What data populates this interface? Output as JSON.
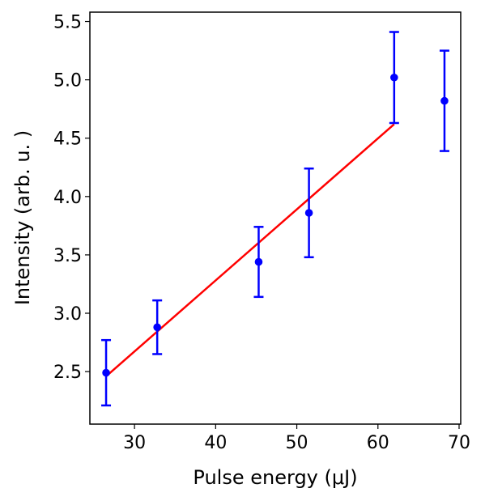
{
  "chart_data": {
    "type": "scatter",
    "title": "",
    "xlabel": "Pulse energy (μJ)",
    "ylabel": "Intensity (arb.  u. )",
    "xlim": [
      24.5,
      70.2
    ],
    "ylim": [
      2.05,
      5.58
    ],
    "xticks": [
      30,
      40,
      50,
      60,
      70
    ],
    "yticks": [
      2.5,
      3.0,
      3.5,
      4.0,
      4.5,
      5.0,
      5.5
    ],
    "xtick_labels": [
      "30",
      "40",
      "50",
      "60",
      "70"
    ],
    "ytick_labels": [
      "2.5",
      "3.0",
      "3.5",
      "4.0",
      "4.5",
      "5.0",
      "5.5"
    ],
    "grid": false,
    "series": [
      {
        "type": "errorbar",
        "color": "#0000ff",
        "x": [
          26.5,
          32.8,
          45.3,
          51.5,
          62.0,
          68.2
        ],
        "y": [
          2.49,
          2.88,
          3.44,
          3.86,
          5.02,
          4.82
        ],
        "yerr": [
          0.28,
          0.23,
          0.3,
          0.38,
          0.39,
          0.43
        ]
      },
      {
        "type": "line",
        "color": "#ff0000",
        "x": [
          26.5,
          62.0
        ],
        "y": [
          2.46,
          4.62
        ]
      }
    ]
  }
}
